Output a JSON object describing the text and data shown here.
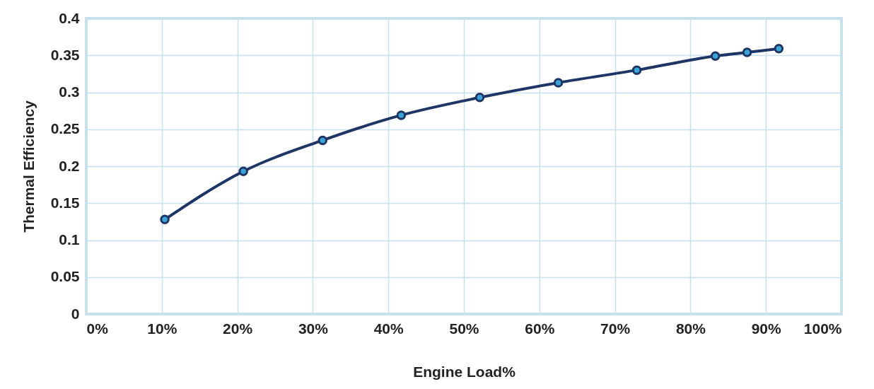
{
  "chart_data": {
    "type": "line",
    "xlabel": "Engine Load%",
    "ylabel": "Thermal Efficiency",
    "x": [
      10.4,
      20.8,
      31.3,
      41.7,
      52.1,
      62.5,
      72.9,
      83.3,
      87.5,
      91.7
    ],
    "series": [
      {
        "color": "#1f3566",
        "values": [
          0.128,
          0.193,
          0.235,
          0.269,
          0.293,
          0.313,
          0.33,
          0.349,
          0.354,
          0.359
        ]
      }
    ],
    "xlim": [
      0,
      100
    ],
    "xticks": [
      {
        "value": 0,
        "label": "0%"
      },
      {
        "value": 10,
        "label": "10%"
      },
      {
        "value": 20,
        "label": "20%"
      },
      {
        "value": 30,
        "label": "30%"
      },
      {
        "value": 40,
        "label": "40%"
      },
      {
        "value": 50,
        "label": "50%"
      },
      {
        "value": 60,
        "label": "60%"
      },
      {
        "value": 70,
        "label": "70%"
      },
      {
        "value": 80,
        "label": "80%"
      },
      {
        "value": 90,
        "label": "90%"
      },
      {
        "value": 100,
        "label": "100%"
      }
    ],
    "ylim": [
      0,
      0.4
    ],
    "yticks": [
      0,
      0.05,
      0.1,
      0.15,
      0.2,
      0.25,
      0.3,
      0.35,
      0.4
    ],
    "grid": true,
    "marker": "circle",
    "line_style": "solid"
  }
}
